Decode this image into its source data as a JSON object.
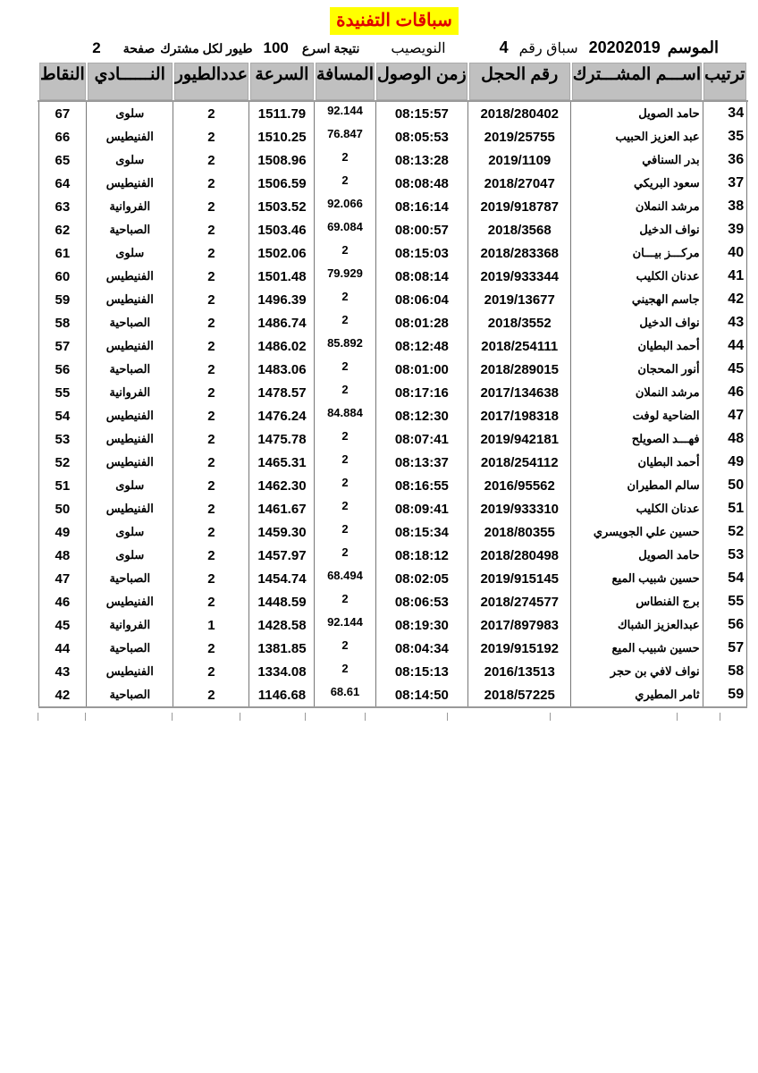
{
  "title": "سباقات التفنيدة",
  "info": {
    "season_label": "الموسم",
    "season": "20202019",
    "race_label": "سباق رقم",
    "race": "4",
    "location": "النويصيب",
    "result_label": "نتيجة اسرع",
    "birds_count": "100",
    "birds_label": "طيور لكل مشترك",
    "page_label": "صفحة",
    "page": "2"
  },
  "headers": [
    "ترتيب",
    "اســـم المشـــترك",
    "رقم الحجل",
    "زمن الوصول",
    "المسافة",
    "السرعة",
    "عددالطيور",
    "النــــــادي",
    "النقاط"
  ],
  "rows": [
    [
      "34",
      "حامد الصويل",
      "2018/280402",
      "08:15:57",
      "92.144",
      "1511.79",
      "2",
      "سلوى",
      "67"
    ],
    [
      "35",
      "عبد العزيز الحبيب",
      "2019/25755",
      "08:05:53",
      "76.847",
      "1510.25",
      "2",
      "الفنيطيس",
      "66"
    ],
    [
      "36",
      "بدر السنافي",
      "2019/1109",
      "08:13:28",
      "2",
      "1508.96",
      "2",
      "سلوى",
      "65"
    ],
    [
      "37",
      "سعود البريكي",
      "2018/27047",
      "08:08:48",
      "2",
      "1506.59",
      "2",
      "الفنيطيس",
      "64"
    ],
    [
      "38",
      "مرشد النملان",
      "2019/918787",
      "08:16:14",
      "92.066",
      "1503.52",
      "2",
      "الفروانية",
      "63"
    ],
    [
      "39",
      "نواف الدخيل",
      "2018/3568",
      "08:00:57",
      "69.084",
      "1503.46",
      "2",
      "الصباحية",
      "62"
    ],
    [
      "40",
      "مركـــز بيـــان",
      "2018/283368",
      "08:15:03",
      "2",
      "1502.06",
      "2",
      "سلوى",
      "61"
    ],
    [
      "41",
      "عدنان الكليب",
      "2019/933344",
      "08:08:14",
      "79.929",
      "1501.48",
      "2",
      "الفنيطيس",
      "60"
    ],
    [
      "42",
      "جاسم الهجيني",
      "2019/13677",
      "08:06:04",
      "2",
      "1496.39",
      "2",
      "الفنيطيس",
      "59"
    ],
    [
      "43",
      "نواف الدخيل",
      "2018/3552",
      "08:01:28",
      "2",
      "1486.74",
      "2",
      "الصباحية",
      "58"
    ],
    [
      "44",
      "أحمد البطيان",
      "2018/254111",
      "08:12:48",
      "85.892",
      "1486.02",
      "2",
      "الفنيطيس",
      "57"
    ],
    [
      "45",
      "أنور المحجان",
      "2018/289015",
      "08:01:00",
      "2",
      "1483.06",
      "2",
      "الصباحية",
      "56"
    ],
    [
      "46",
      "مرشد النملان",
      "2017/134638",
      "08:17:16",
      "2",
      "1478.57",
      "2",
      "الفروانية",
      "55"
    ],
    [
      "47",
      "الضاحية لوفت",
      "2017/198318",
      "08:12:30",
      "84.884",
      "1476.24",
      "2",
      "الفنيطيس",
      "54"
    ],
    [
      "48",
      "فهـــد الصويلح",
      "2019/942181",
      "08:07:41",
      "2",
      "1475.78",
      "2",
      "الفنيطيس",
      "53"
    ],
    [
      "49",
      "أحمد البطيان",
      "2018/254112",
      "08:13:37",
      "2",
      "1465.31",
      "2",
      "الفنيطيس",
      "52"
    ],
    [
      "50",
      "سالم المطيران",
      "2016/95562",
      "08:16:55",
      "2",
      "1462.30",
      "2",
      "سلوى",
      "51"
    ],
    [
      "51",
      "عدنان الكليب",
      "2019/933310",
      "08:09:41",
      "2",
      "1461.67",
      "2",
      "الفنيطيس",
      "50"
    ],
    [
      "52",
      "حسين علي الجويسري",
      "2018/80355",
      "08:15:34",
      "2",
      "1459.30",
      "2",
      "سلوى",
      "49"
    ],
    [
      "53",
      "حامد الصويل",
      "2018/280498",
      "08:18:12",
      "2",
      "1457.97",
      "2",
      "سلوى",
      "48"
    ],
    [
      "54",
      "حسين شبيب الميع",
      "2019/915145",
      "08:02:05",
      "68.494",
      "1454.74",
      "2",
      "الصباحية",
      "47"
    ],
    [
      "55",
      "برج الفنطاس",
      "2018/274577",
      "08:06:53",
      "2",
      "1448.59",
      "2",
      "الفنيطيس",
      "46"
    ],
    [
      "56",
      "عبدالعزيز الشباك",
      "2017/897983",
      "08:19:30",
      "92.144",
      "1428.58",
      "1",
      "الفروانية",
      "45"
    ],
    [
      "57",
      "حسين شبيب الميع",
      "2019/915192",
      "08:04:34",
      "2",
      "1381.85",
      "2",
      "الصباحية",
      "44"
    ],
    [
      "58",
      "نواف لافي بن حجر",
      "2016/13513",
      "08:15:13",
      "2",
      "1334.08",
      "2",
      "الفنيطيس",
      "43"
    ],
    [
      "59",
      "ثامر المطيري",
      "2018/57225",
      "08:14:50",
      "68.61",
      "1146.68",
      "2",
      "الصباحية",
      "42"
    ]
  ]
}
